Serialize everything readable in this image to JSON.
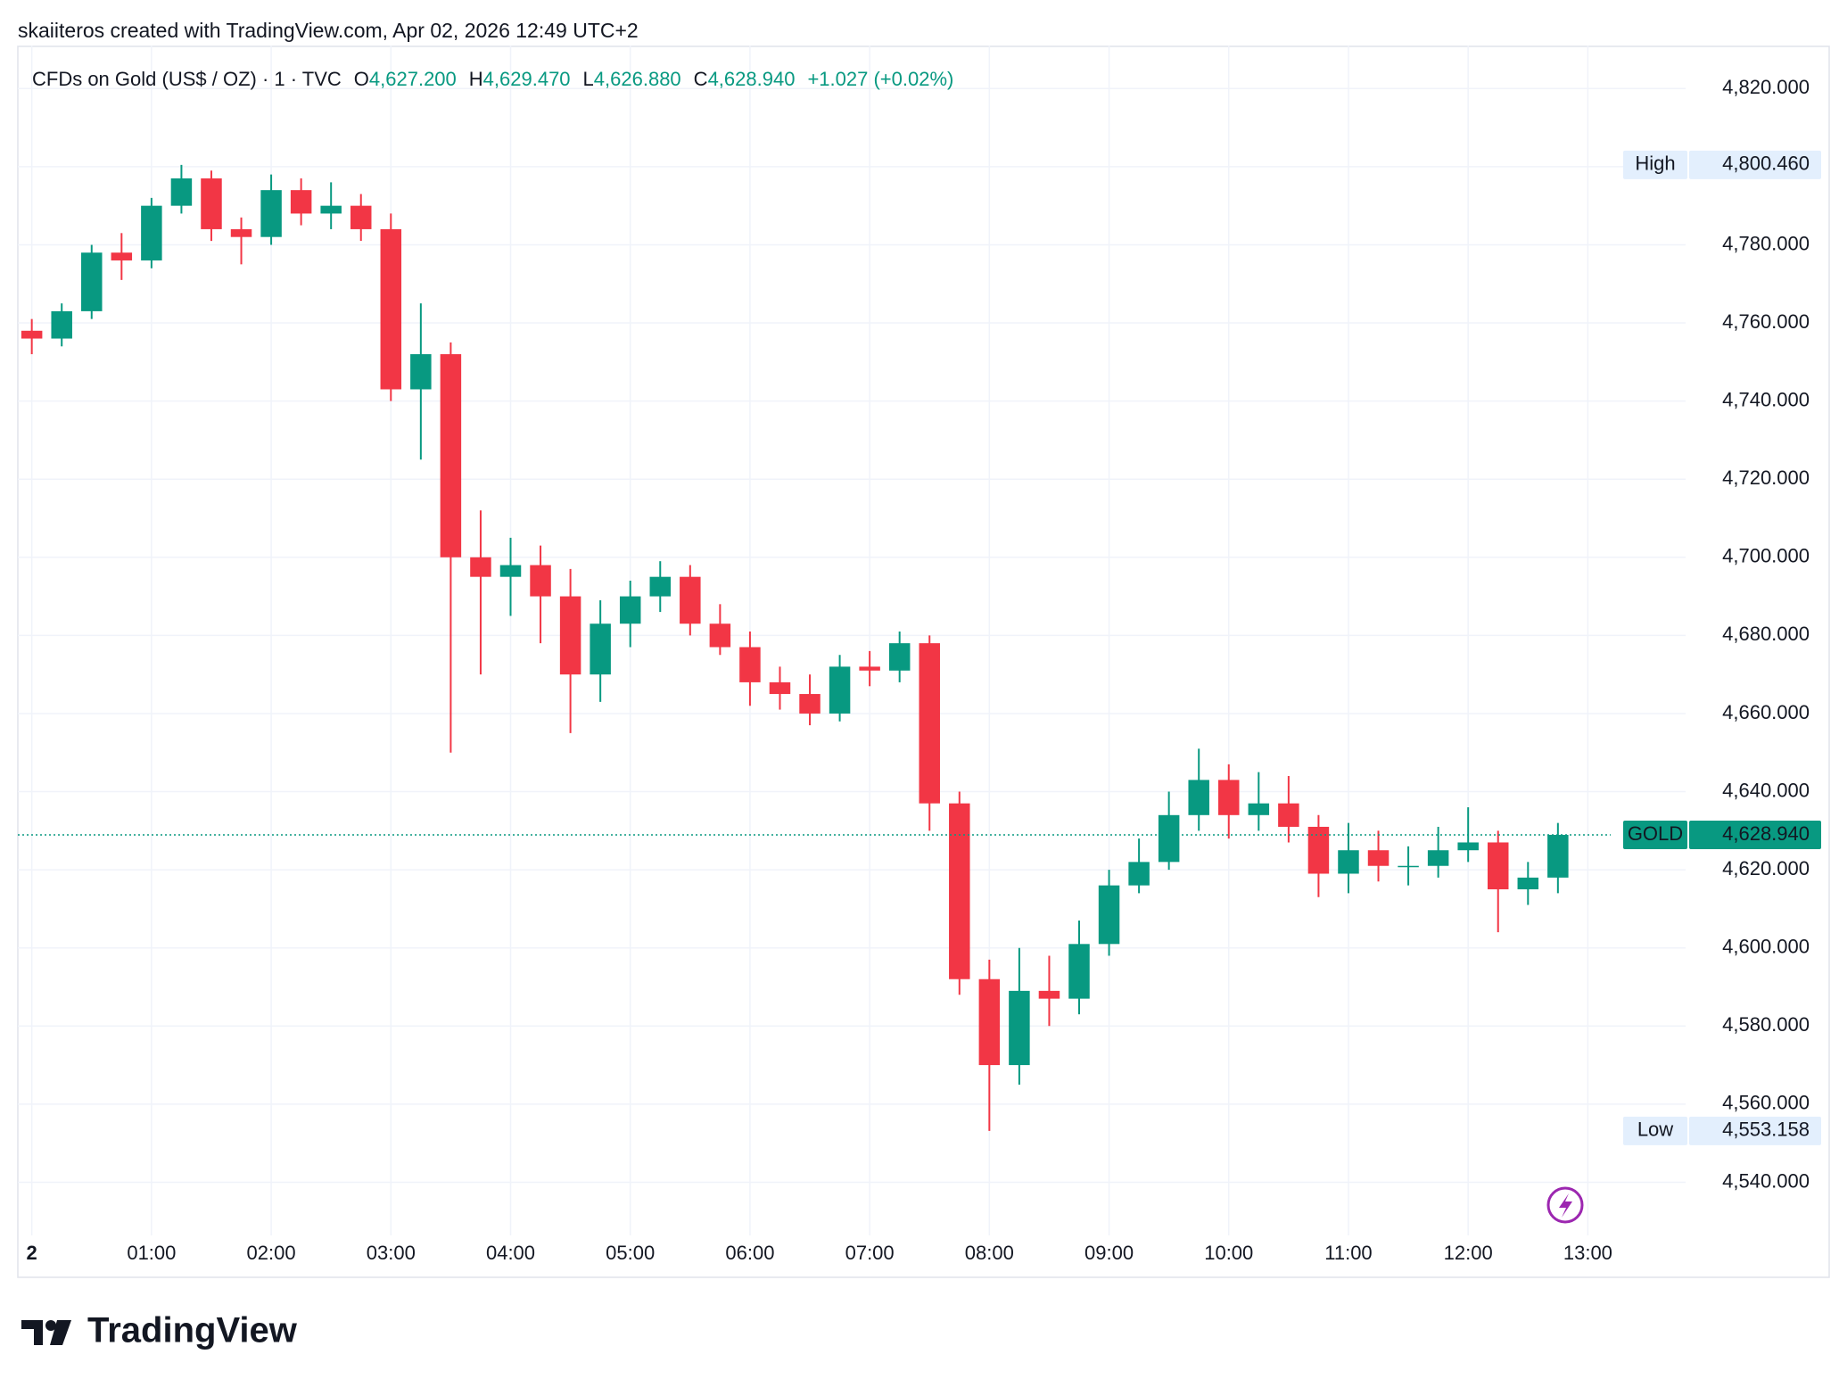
{
  "chart_data": {
    "type": "candlestick",
    "attribution": "skaiiteros created with TradingView.com, Apr 02, 2026 12:49 UTC+2",
    "title": "CFDs on Gold (US$ / OZ) · 1 · TVC",
    "ohlc_readout": [
      {
        "label": "O",
        "text": "4,627.200"
      },
      {
        "label": "H",
        "text": "4,629.470"
      },
      {
        "label": "L",
        "text": "4,626.880"
      },
      {
        "label": "C",
        "text": "4,628.940"
      }
    ],
    "change": "+1.027 (+0.02%)",
    "brand": "TradingView",
    "up_color": "#089981",
    "down_color": "#f23645",
    "grid": true,
    "x": [
      0,
      15,
      30,
      45,
      60,
      75,
      90,
      105,
      120,
      135,
      150,
      165,
      180,
      195,
      210,
      225,
      240,
      255,
      270,
      285,
      300,
      315,
      330,
      345,
      360,
      375,
      390,
      405,
      420,
      435,
      450,
      465,
      480,
      495,
      510,
      525,
      540,
      555,
      570,
      585,
      600,
      615,
      630,
      645,
      660,
      675,
      690,
      705,
      720,
      735,
      750,
      765
    ],
    "open": [
      4758,
      4756,
      4763,
      4778,
      4776,
      4790,
      4797,
      4784,
      4782,
      4794,
      4788,
      4790,
      4784,
      4743,
      4752,
      4700,
      4695,
      4698,
      4690,
      4670,
      4683,
      4690,
      4695,
      4683,
      4677,
      4668,
      4665,
      4660,
      4672,
      4671,
      4678,
      4637,
      4592,
      4570,
      4589,
      4587,
      4601,
      4616,
      4622,
      4634,
      4643,
      4634,
      4637,
      4631,
      4619,
      4625,
      4621,
      4621,
      4625,
      4627,
      4615,
      4618
    ],
    "high": [
      4761,
      4765,
      4780,
      4783,
      4792,
      4800.46,
      4799,
      4787,
      4798,
      4797,
      4796,
      4793,
      4788,
      4765,
      4755,
      4712,
      4705,
      4703,
      4697,
      4689,
      4694,
      4699,
      4698,
      4688,
      4681,
      4672,
      4670,
      4675,
      4676,
      4681,
      4680,
      4640,
      4597,
      4600,
      4598,
      4607,
      4620,
      4628,
      4640,
      4651,
      4647,
      4645,
      4644,
      4634,
      4632,
      4630,
      4626,
      4631,
      4636,
      4630,
      4622,
      4632
    ],
    "low": [
      4752,
      4754,
      4761,
      4771,
      4774,
      4788,
      4781,
      4775,
      4780,
      4785,
      4784,
      4781,
      4740,
      4725,
      4650,
      4670,
      4685,
      4678,
      4655,
      4663,
      4677,
      4686,
      4680,
      4675,
      4662,
      4661,
      4657,
      4658,
      4667,
      4668,
      4630,
      4588,
      4553.158,
      4565,
      4580,
      4583,
      4598,
      4614,
      4620,
      4630,
      4628,
      4630,
      4627,
      4613,
      4614,
      4617,
      4616,
      4618,
      4622,
      4604,
      4611,
      4614
    ],
    "close": [
      4756,
      4763,
      4778,
      4776,
      4790,
      4797,
      4784,
      4782,
      4794,
      4788,
      4790,
      4784,
      4743,
      4752,
      4700,
      4695,
      4698,
      4690,
      4670,
      4683,
      4690,
      4695,
      4683,
      4677,
      4668,
      4665,
      4660,
      4672,
      4671,
      4678,
      4637,
      4592,
      4570,
      4589,
      4587,
      4601,
      4616,
      4622,
      4634,
      4643,
      4634,
      4637,
      4631,
      4619,
      4625,
      4621,
      4621,
      4625,
      4627,
      4615,
      4618,
      4628.94
    ],
    "xlim": [
      -7,
      829
    ],
    "xticks": [
      {
        "value": 0,
        "label": "2"
      },
      {
        "value": 60,
        "label": "01:00"
      },
      {
        "value": 120,
        "label": "02:00"
      },
      {
        "value": 180,
        "label": "03:00"
      },
      {
        "value": 240,
        "label": "04:00"
      },
      {
        "value": 300,
        "label": "05:00"
      },
      {
        "value": 360,
        "label": "06:00"
      },
      {
        "value": 420,
        "label": "07:00"
      },
      {
        "value": 480,
        "label": "08:00"
      },
      {
        "value": 540,
        "label": "09:00"
      },
      {
        "value": 600,
        "label": "10:00"
      },
      {
        "value": 660,
        "label": "11:00"
      },
      {
        "value": 720,
        "label": "12:00"
      },
      {
        "value": 780,
        "label": "13:00"
      }
    ],
    "ylim": [
      4526.4,
      4830
    ],
    "yticks": [
      {
        "value": 4540,
        "label": "4,540.000"
      },
      {
        "value": 4560,
        "label": "4,560.000"
      },
      {
        "value": 4580,
        "label": "4,580.000"
      },
      {
        "value": 4600,
        "label": "4,600.000"
      },
      {
        "value": 4620,
        "label": "4,620.000"
      },
      {
        "value": 4640,
        "label": "4,640.000"
      },
      {
        "value": 4660,
        "label": "4,660.000"
      },
      {
        "value": 4680,
        "label": "4,680.000"
      },
      {
        "value": 4700,
        "label": "4,700.000"
      },
      {
        "value": 4720,
        "label": "4,720.000"
      },
      {
        "value": 4740,
        "label": "4,740.000"
      },
      {
        "value": 4760,
        "label": "4,760.000"
      },
      {
        "value": 4780,
        "label": "4,780.000"
      },
      {
        "value": 4800,
        "label": "4,800.000"
      },
      {
        "value": 4820,
        "label": "4,820.000"
      }
    ],
    "markers": [
      {
        "label": "High",
        "value": 4800.46,
        "value_label": "4,800.460",
        "color": "#e3effd"
      },
      {
        "label": "Low",
        "value": 4553.158,
        "value_label": "4,553.158",
        "color": "#e3effd"
      },
      {
        "label": "GOLD",
        "value": 4628.94,
        "value_label": "4,628.940",
        "color": "#089981",
        "line": true
      }
    ]
  }
}
